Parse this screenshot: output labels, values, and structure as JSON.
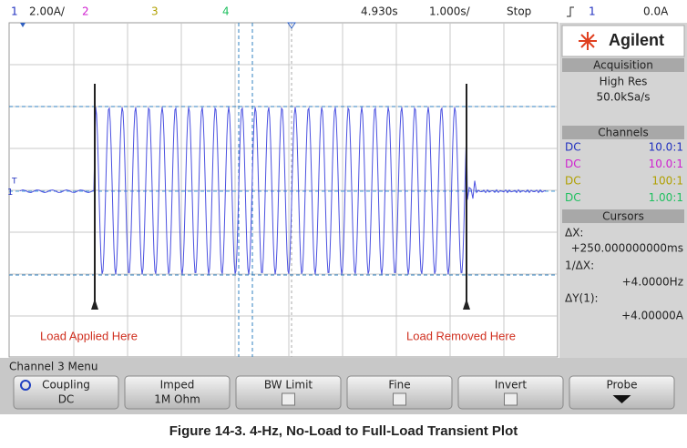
{
  "top_bar": {
    "ch1": "1",
    "ch1_scale": "2.00A/",
    "ch2": "2",
    "ch3": "3",
    "ch4": "4",
    "time": "4.930s",
    "timebase": "1.000s/",
    "status": "Stop",
    "trigger_channel": "1",
    "trigger_level": "0.0A"
  },
  "screen": {
    "trace_marker": "1",
    "trigger_marker": "T",
    "annotations": [
      "Load Applied Here",
      "Load Removed Here"
    ]
  },
  "panel": {
    "brand": "Agilent",
    "acquisition": {
      "title": "Acquisition",
      "mode": "High Res",
      "rate": "50.0kSa/s"
    },
    "channels": {
      "title": "Channels",
      "rows": [
        {
          "coupling": "DC",
          "probe": "10.0:1"
        },
        {
          "coupling": "DC",
          "probe": "10.0:1"
        },
        {
          "coupling": "DC",
          "probe": "100:1"
        },
        {
          "coupling": "DC",
          "probe": "1.00:1"
        }
      ]
    },
    "cursors": {
      "title": "Cursors",
      "dx_label": "ΔX:",
      "dx": "+250.000000000ms",
      "inv_label": "1/ΔX:",
      "inv": "+4.0000Hz",
      "dy_label": "ΔY(1):",
      "dy": "+4.00000A"
    }
  },
  "menu": {
    "title": "Channel 3 Menu",
    "buttons": [
      {
        "label": "Coupling",
        "value": "DC"
      },
      {
        "label": "Imped",
        "value": "1M Ohm"
      },
      {
        "label": "BW Limit"
      },
      {
        "label": "Fine"
      },
      {
        "label": "Invert"
      },
      {
        "label": "Probe"
      }
    ]
  },
  "caption": "Figure 14-3. 4-Hz, No-Load to Full-Load Transient Plot"
}
